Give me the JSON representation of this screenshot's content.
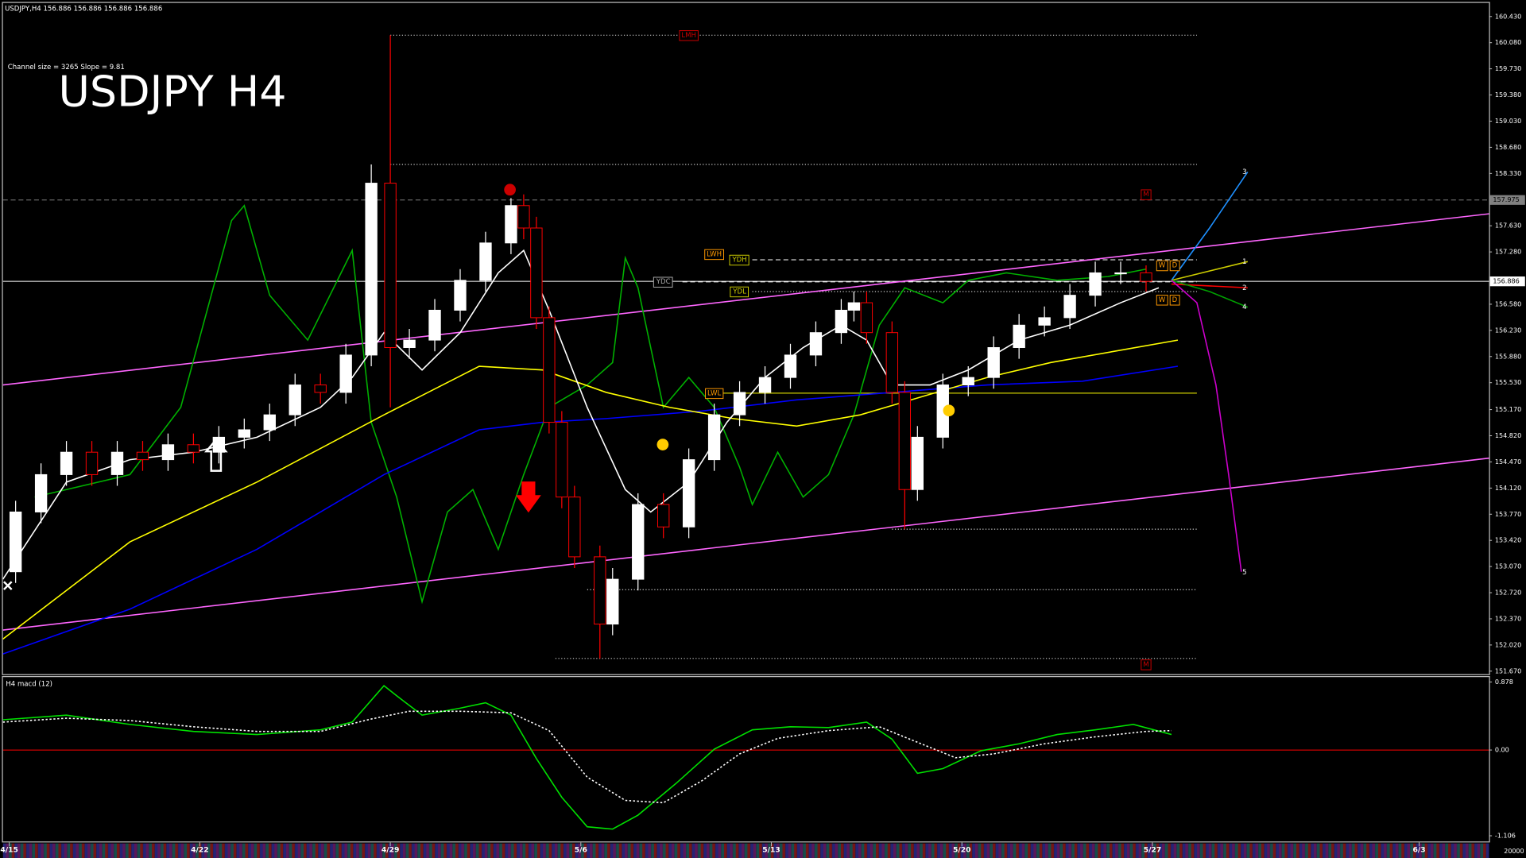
{
  "header": "USDJPY,H4  156.886 156.886 156.886 156.886",
  "channel_info": "Channel size = 3265 Slope = 9.81",
  "footer_value": "20000",
  "chart_data": [
    {
      "type": "candlestick",
      "title": "USDJPY H4",
      "up_color": "#ffffff",
      "down_color": "#ff0000",
      "x": [
        2,
        6,
        10,
        14,
        18,
        22,
        26,
        30,
        34,
        38,
        42,
        46,
        50,
        54,
        58,
        61,
        64,
        68,
        72,
        76,
        80,
        82,
        84,
        86,
        88,
        90,
        94,
        96,
        100,
        104,
        108,
        112,
        116,
        120,
        124,
        128,
        132,
        134,
        136,
        140,
        142,
        144,
        148,
        152,
        156,
        160,
        164,
        168,
        172,
        176,
        180
      ],
      "open": [
        153.0,
        153.8,
        154.3,
        154.6,
        154.3,
        154.6,
        154.5,
        154.7,
        154.6,
        154.8,
        154.9,
        155.1,
        155.5,
        155.4,
        155.9,
        158.2,
        156.0,
        156.1,
        156.5,
        156.9,
        157.4,
        157.9,
        157.6,
        156.4,
        155.0,
        154.0,
        153.2,
        152.3,
        152.9,
        153.9,
        153.6,
        154.5,
        155.1,
        155.4,
        155.6,
        155.9,
        156.2,
        156.5,
        156.6,
        156.2,
        155.4,
        154.1,
        154.8,
        155.5,
        155.6,
        156.0,
        156.3,
        156.4,
        156.7,
        157.0,
        157.0
      ],
      "high": [
        153.95,
        154.45,
        154.75,
        154.75,
        154.75,
        154.75,
        154.85,
        154.85,
        154.95,
        155.05,
        155.25,
        155.65,
        155.65,
        156.05,
        158.45,
        160.18,
        156.25,
        156.65,
        157.05,
        157.55,
        158.0,
        158.05,
        157.75,
        156.55,
        155.15,
        154.15,
        153.35,
        153.05,
        154.05,
        154.05,
        154.65,
        155.25,
        155.55,
        155.75,
        156.05,
        156.35,
        156.65,
        156.75,
        156.75,
        156.35,
        155.55,
        154.95,
        155.65,
        155.75,
        156.15,
        156.45,
        156.55,
        156.85,
        157.15,
        157.15,
        157.1
      ],
      "low": [
        152.85,
        153.65,
        154.15,
        154.15,
        154.15,
        154.35,
        154.35,
        154.45,
        154.45,
        154.65,
        154.75,
        154.95,
        155.25,
        155.25,
        155.75,
        155.2,
        155.85,
        155.95,
        156.35,
        156.75,
        157.25,
        157.45,
        156.25,
        154.85,
        153.85,
        153.05,
        151.84,
        152.15,
        152.75,
        153.45,
        153.45,
        154.35,
        154.95,
        155.25,
        155.45,
        155.75,
        156.05,
        156.35,
        156.05,
        155.25,
        153.57,
        153.95,
        154.65,
        155.35,
        155.45,
        155.85,
        156.15,
        156.25,
        156.55,
        156.85,
        156.75
      ],
      "close": [
        153.8,
        154.3,
        154.6,
        154.3,
        154.6,
        154.5,
        154.7,
        154.6,
        154.8,
        154.9,
        155.1,
        155.5,
        155.4,
        155.9,
        158.2,
        156.0,
        156.1,
        156.5,
        156.9,
        157.4,
        157.9,
        157.6,
        156.4,
        155.0,
        154.0,
        153.2,
        152.3,
        152.9,
        153.9,
        153.6,
        154.5,
        155.1,
        155.4,
        155.6,
        155.9,
        156.2,
        156.5,
        156.6,
        156.2,
        155.4,
        154.1,
        154.8,
        155.5,
        155.6,
        156.0,
        156.3,
        156.4,
        156.7,
        157.0,
        157.0,
        156.886
      ],
      "xlim": [
        0,
        234
      ],
      "ylim": [
        151.63,
        160.612
      ],
      "xticks": [
        {
          "value": 1,
          "label": "4/15"
        },
        {
          "value": 31,
          "label": "4/22"
        },
        {
          "value": 61,
          "label": "4/29"
        },
        {
          "value": 91,
          "label": "5/6"
        },
        {
          "value": 121,
          "label": "5/13"
        },
        {
          "value": 151,
          "label": "5/20"
        },
        {
          "value": 181,
          "label": "5/27"
        },
        {
          "value": 223,
          "label": "6/3"
        }
      ],
      "yticks": [
        {
          "value": 160.43,
          "label": "160.430"
        },
        {
          "value": 160.08,
          "label": "160.080"
        },
        {
          "value": 159.73,
          "label": "159.730"
        },
        {
          "value": 159.38,
          "label": "159.380"
        },
        {
          "value": 159.03,
          "label": "159.030"
        },
        {
          "value": 158.68,
          "label": "158.680"
        },
        {
          "value": 158.33,
          "label": "158.330"
        },
        {
          "value": 157.63,
          "label": "157.630"
        },
        {
          "value": 157.28,
          "label": "157.280"
        },
        {
          "value": 156.58,
          "label": "156.580"
        },
        {
          "value": 156.23,
          "label": "156.230"
        },
        {
          "value": 155.88,
          "label": "155.880"
        },
        {
          "value": 155.53,
          "label": "155.530"
        },
        {
          "value": 155.17,
          "label": "155.170"
        },
        {
          "value": 154.82,
          "label": "154.820"
        },
        {
          "value": 154.47,
          "label": "154.470"
        },
        {
          "value": 154.12,
          "label": "154.120"
        },
        {
          "value": 153.77,
          "label": "153.770"
        },
        {
          "value": 153.42,
          "label": "153.420"
        },
        {
          "value": 153.07,
          "label": "153.070"
        },
        {
          "value": 152.72,
          "label": "152.720"
        },
        {
          "value": 152.37,
          "label": "152.370"
        },
        {
          "value": 152.02,
          "label": "152.020"
        },
        {
          "value": 151.67,
          "label": "151.670"
        }
      ],
      "price_marks": [
        {
          "value": 157.975,
          "color": "#808080",
          "text_color": "#000000",
          "style": "dashed"
        },
        {
          "value": 156.886,
          "color": "#ffffff",
          "text_color": "#000000",
          "style": "solid"
        }
      ],
      "overlays": [
        {
          "color": "#ff66ff",
          "x": [
            0,
            234
          ],
          "values": [
            155.5,
            157.79
          ]
        },
        {
          "color": "#ff66ff",
          "x": [
            0,
            234
          ],
          "values": [
            152.22,
            154.52
          ]
        },
        {
          "color": "#00b000",
          "x": [
            5,
            20,
            28,
            36,
            38,
            42,
            48,
            55,
            58,
            62,
            66,
            70,
            74,
            78,
            82,
            86,
            92,
            96,
            98,
            100,
            104,
            108,
            112,
            116,
            118,
            122,
            126,
            130,
            134,
            138,
            142,
            148,
            152,
            158,
            166,
            174,
            180
          ],
          "values": [
            154.0,
            154.3,
            155.2,
            157.7,
            157.9,
            156.7,
            156.1,
            157.3,
            155.0,
            154.0,
            152.6,
            153.8,
            154.1,
            153.3,
            154.3,
            155.2,
            155.5,
            155.8,
            157.2,
            156.8,
            155.2,
            155.6,
            155.2,
            154.4,
            153.9,
            154.6,
            154.0,
            154.3,
            155.1,
            156.3,
            156.8,
            156.6,
            156.9,
            157.0,
            156.9,
            156.95,
            157.05
          ]
        },
        {
          "color": "#0000ff",
          "x": [
            0,
            20,
            40,
            60,
            75,
            85,
            95,
            110,
            125,
            140,
            155,
            170,
            185
          ],
          "values": [
            151.9,
            152.5,
            153.3,
            154.3,
            154.9,
            155.0,
            155.05,
            155.15,
            155.3,
            155.4,
            155.5,
            155.55,
            155.75
          ]
        },
        {
          "color": "#ffff00",
          "x": [
            0,
            20,
            40,
            60,
            75,
            85,
            95,
            105,
            115,
            125,
            135,
            145,
            155,
            165,
            175,
            185
          ],
          "values": [
            152.1,
            153.4,
            154.2,
            155.1,
            155.75,
            155.7,
            155.4,
            155.2,
            155.05,
            154.95,
            155.1,
            155.35,
            155.6,
            155.8,
            155.95,
            156.1
          ]
        },
        {
          "color": "#ffffff",
          "x": [
            0,
            10,
            20,
            30,
            40,
            50,
            55,
            60,
            66,
            72,
            78,
            82,
            86,
            92,
            98,
            102,
            108,
            114,
            120,
            126,
            132,
            136,
            140,
            146,
            152,
            160,
            168,
            176,
            182
          ],
          "values": [
            152.9,
            154.2,
            154.5,
            154.6,
            154.8,
            155.2,
            155.6,
            156.2,
            155.7,
            156.2,
            157.0,
            157.3,
            156.5,
            155.2,
            154.1,
            153.8,
            154.2,
            155.0,
            155.6,
            156.0,
            156.3,
            156.1,
            155.5,
            155.5,
            155.7,
            156.1,
            156.3,
            156.6,
            156.8
          ]
        },
        {
          "color": "#1e90ff",
          "x": [
            184,
            190,
            196
          ],
          "values": [
            156.9,
            157.6,
            158.35
          ]
        },
        {
          "color": "#cccc00",
          "x": [
            184,
            196
          ],
          "values": [
            156.9,
            157.15
          ]
        },
        {
          "color": "#ff0000",
          "x": [
            184,
            196
          ],
          "values": [
            156.85,
            156.8
          ]
        },
        {
          "color": "#00a000",
          "x": [
            184,
            190,
            196
          ],
          "values": [
            156.9,
            156.75,
            156.54
          ]
        },
        {
          "color": "#cc00cc",
          "x": [
            184,
            188,
            191,
            193,
            195
          ],
          "values": [
            156.9,
            156.6,
            155.5,
            154.3,
            153.0
          ]
        }
      ],
      "levels": [
        {
          "value": 160.18,
          "from": 61,
          "to": 188,
          "color": "#cccccc",
          "style": "dotted"
        },
        {
          "value": 158.45,
          "from": 61,
          "to": 188,
          "color": "#cccccc",
          "style": "dotted"
        },
        {
          "value": 157.175,
          "from": 118,
          "to": 188,
          "color": "#cccccc",
          "style": "dashed"
        },
        {
          "value": 156.88,
          "from": 107,
          "to": 188,
          "color": "#dddddd",
          "style": "dashed"
        },
        {
          "value": 156.75,
          "from": 118,
          "to": 188,
          "color": "#cccccc",
          "style": "dotted"
        },
        {
          "value": 155.39,
          "from": 112,
          "to": 188,
          "color": "#cccc00",
          "style": "solid"
        },
        {
          "value": 153.57,
          "from": 140,
          "to": 188,
          "color": "#cccccc",
          "style": "dotted"
        },
        {
          "value": 152.76,
          "from": 92,
          "to": 188,
          "color": "#cccccc",
          "style": "dotted"
        },
        {
          "value": 151.84,
          "from": 87,
          "to": 188,
          "color": "#cccccc",
          "style": "dotted"
        }
      ],
      "annotations": [
        {
          "text": "LMH",
          "x": 108,
          "y": 160.18,
          "color": "#cc0000"
        },
        {
          "text": "LWH",
          "x": 112,
          "y": 157.25,
          "color": "#ff9900"
        },
        {
          "text": "YDH",
          "x": 116,
          "y": 157.175,
          "color": "#cccc00"
        },
        {
          "text": "YDC",
          "x": 104,
          "y": 156.88,
          "color": "#aaaaaa"
        },
        {
          "text": "YDL",
          "x": 116,
          "y": 156.75,
          "color": "#cccc00"
        },
        {
          "text": "LWL",
          "x": 112,
          "y": 155.39,
          "color": "#ff9900"
        },
        {
          "text": "M",
          "x": 180,
          "y": 158.05,
          "color": "#cc0000"
        },
        {
          "text": "M",
          "x": 180,
          "y": 151.76,
          "color": "#cc0000"
        },
        {
          "text": "W",
          "x": 182.5,
          "y": 157.1,
          "color": "#ff9900"
        },
        {
          "text": "D",
          "x": 184.5,
          "y": 157.1,
          "color": "#ff9900"
        },
        {
          "text": "W",
          "x": 182.5,
          "y": 156.64,
          "color": "#ff9900"
        },
        {
          "text": "D",
          "x": 184.5,
          "y": 156.64,
          "color": "#ff9900"
        },
        {
          "text": "1",
          "x": 195.5,
          "y": 157.15
        },
        {
          "text": "2",
          "x": 195.5,
          "y": 156.8
        },
        {
          "text": "3",
          "x": 195.5,
          "y": 158.35
        },
        {
          "text": "4",
          "x": 195.5,
          "y": 156.54
        },
        {
          "text": "5",
          "x": 195.5,
          "y": 152.99
        }
      ]
    },
    {
      "type": "line",
      "title": "H4  macd (12)",
      "xlim": [
        0,
        234
      ],
      "ylim": [
        -1.167,
        0.941
      ],
      "yticks": [
        0.878,
        {
          "value": 0,
          "label": "0.00"
        },
        -1.106
      ],
      "zero_line_color": "#ff0000",
      "series": [
        {
          "color": "#00e000",
          "x": [
            0,
            10,
            20,
            30,
            40,
            50,
            55,
            60,
            62,
            66,
            72,
            76,
            80,
            84,
            88,
            92,
            96,
            100,
            106,
            112,
            118,
            124,
            130,
            136,
            140,
            144,
            148,
            154,
            160,
            166,
            172,
            178,
            184
          ],
          "values": [
            0.39,
            0.45,
            0.33,
            0.24,
            0.2,
            0.26,
            0.36,
            0.83,
            0.7,
            0.45,
            0.54,
            0.61,
            0.45,
            -0.11,
            -0.61,
            -0.99,
            -1.02,
            -0.84,
            -0.43,
            0.01,
            0.26,
            0.3,
            0.29,
            0.36,
            0.14,
            -0.3,
            -0.24,
            -0.01,
            0.08,
            0.2,
            0.26,
            0.33,
            0.2
          ]
        },
        {
          "color": "#ffffff",
          "dashed": true,
          "x": [
            0,
            10,
            20,
            30,
            40,
            50,
            58,
            64,
            72,
            80,
            86,
            92,
            98,
            104,
            110,
            116,
            122,
            130,
            138,
            144,
            150,
            156,
            164,
            172,
            180,
            184
          ],
          "values": [
            0.36,
            0.41,
            0.38,
            0.3,
            0.24,
            0.24,
            0.4,
            0.5,
            0.5,
            0.48,
            0.25,
            -0.35,
            -0.65,
            -0.68,
            -0.4,
            -0.05,
            0.15,
            0.25,
            0.3,
            0.1,
            -0.1,
            -0.05,
            0.08,
            0.17,
            0.24,
            0.25
          ]
        }
      ]
    }
  ]
}
